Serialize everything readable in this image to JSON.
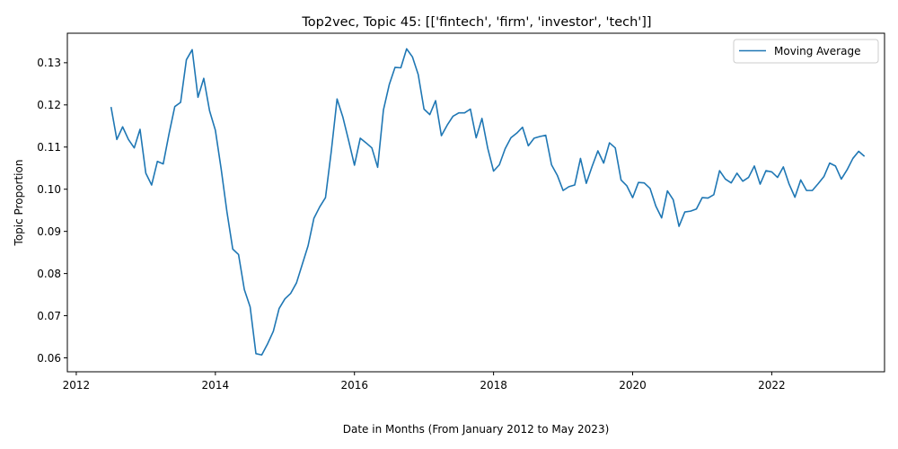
{
  "chart_data": {
    "type": "line",
    "title": "Top2vec, Topic 45: [['fintech', 'firm', 'investor', 'tech']]",
    "xlabel": "Date in Months (From January 2012 to May 2023)",
    "ylabel": "Topic Proportion",
    "xlim": [
      "2011-11-15",
      "2023-08-15"
    ],
    "ylim": [
      0.0567,
      0.137
    ],
    "xticks": [
      "2012",
      "2014",
      "2016",
      "2018",
      "2020",
      "2022"
    ],
    "yticks": [
      "0.06",
      "0.07",
      "0.08",
      "0.09",
      "0.10",
      "0.11",
      "0.12",
      "0.13"
    ],
    "grid": false,
    "legend_position": "top-right",
    "colors": {
      "line": "#1f77b4",
      "axes": "#000000",
      "legend_border": "#cccccc"
    },
    "series": [
      {
        "name": "Moving Average",
        "x": [
          "2012-07",
          "2012-08",
          "2012-09",
          "2012-10",
          "2012-11",
          "2012-12",
          "2013-01",
          "2013-02",
          "2013-03",
          "2013-04",
          "2013-05",
          "2013-06",
          "2013-07",
          "2013-08",
          "2013-09",
          "2013-10",
          "2013-11",
          "2013-12",
          "2014-01",
          "2014-02",
          "2014-03",
          "2014-04",
          "2014-05",
          "2014-06",
          "2014-07",
          "2014-08",
          "2014-09",
          "2014-10",
          "2014-11",
          "2014-12",
          "2015-01",
          "2015-02",
          "2015-03",
          "2015-04",
          "2015-05",
          "2015-06",
          "2015-07",
          "2015-08",
          "2015-09",
          "2015-10",
          "2015-11",
          "2015-12",
          "2016-01",
          "2016-02",
          "2016-03",
          "2016-04",
          "2016-05",
          "2016-06",
          "2016-07",
          "2016-08",
          "2016-09",
          "2016-10",
          "2016-11",
          "2016-12",
          "2017-01",
          "2017-02",
          "2017-03",
          "2017-04",
          "2017-05",
          "2017-06",
          "2017-07",
          "2017-08",
          "2017-09",
          "2017-10",
          "2017-11",
          "2017-12",
          "2018-01",
          "2018-02",
          "2018-03",
          "2018-04",
          "2018-05",
          "2018-06",
          "2018-07",
          "2018-08",
          "2018-09",
          "2018-10",
          "2018-11",
          "2018-12",
          "2019-01",
          "2019-02",
          "2019-03",
          "2019-04",
          "2019-05",
          "2019-06",
          "2019-07",
          "2019-08",
          "2019-09",
          "2019-10",
          "2019-11",
          "2019-12",
          "2020-01",
          "2020-02",
          "2020-03",
          "2020-04",
          "2020-05",
          "2020-06",
          "2020-07",
          "2020-08",
          "2020-09",
          "2020-10",
          "2020-11",
          "2020-12",
          "2021-01",
          "2021-02",
          "2021-03",
          "2021-04",
          "2021-05",
          "2021-06",
          "2021-07",
          "2021-08",
          "2021-09",
          "2021-10",
          "2021-11",
          "2021-12",
          "2022-01",
          "2022-02",
          "2022-03",
          "2022-04",
          "2022-05",
          "2022-06",
          "2022-07",
          "2022-08",
          "2022-09",
          "2022-10",
          "2022-11",
          "2022-12",
          "2023-01",
          "2023-02",
          "2023-03",
          "2023-04",
          "2023-05"
        ],
        "values": [
          0.1195,
          0.1118,
          0.1148,
          0.1118,
          0.1098,
          0.1142,
          0.1038,
          0.101,
          0.1066,
          0.106,
          0.1131,
          0.1196,
          0.1206,
          0.1307,
          0.1331,
          0.1218,
          0.1263,
          0.1186,
          0.114,
          0.1048,
          0.0946,
          0.0858,
          0.0845,
          0.0762,
          0.0721,
          0.061,
          0.0607,
          0.0633,
          0.0663,
          0.0717,
          0.074,
          0.0753,
          0.0778,
          0.0822,
          0.0866,
          0.0931,
          0.0958,
          0.098,
          0.109,
          0.1214,
          0.1171,
          0.1115,
          0.1057,
          0.1121,
          0.111,
          0.1098,
          0.1052,
          0.1188,
          0.1248,
          0.1289,
          0.1288,
          0.1333,
          0.1314,
          0.1272,
          0.119,
          0.1177,
          0.121,
          0.1127,
          0.1152,
          0.1173,
          0.1181,
          0.1181,
          0.119,
          0.1122,
          0.1168,
          0.1097,
          0.1043,
          0.1058,
          0.1096,
          0.1122,
          0.1133,
          0.1147,
          0.1103,
          0.1121,
          0.1125,
          0.1128,
          0.1058,
          0.1033,
          0.0997,
          0.1006,
          0.101,
          0.1073,
          0.1014,
          0.1054,
          0.1091,
          0.1062,
          0.111,
          0.1098,
          0.1022,
          0.1008,
          0.098,
          0.1016,
          0.1015,
          0.1002,
          0.096,
          0.0932,
          0.0996,
          0.0975,
          0.0912,
          0.0946,
          0.0948,
          0.0953,
          0.098,
          0.0979,
          0.0987,
          0.1044,
          0.1024,
          0.1015,
          0.1038,
          0.1019,
          0.1028,
          0.1055,
          0.1012,
          0.1044,
          0.1041,
          0.1028,
          0.1053,
          0.1012,
          0.0981,
          0.1022,
          0.0997,
          0.0997,
          0.1013,
          0.103,
          0.1062,
          0.1055,
          0.1024,
          0.1046,
          0.1073,
          0.109,
          0.1078
        ]
      }
    ]
  }
}
